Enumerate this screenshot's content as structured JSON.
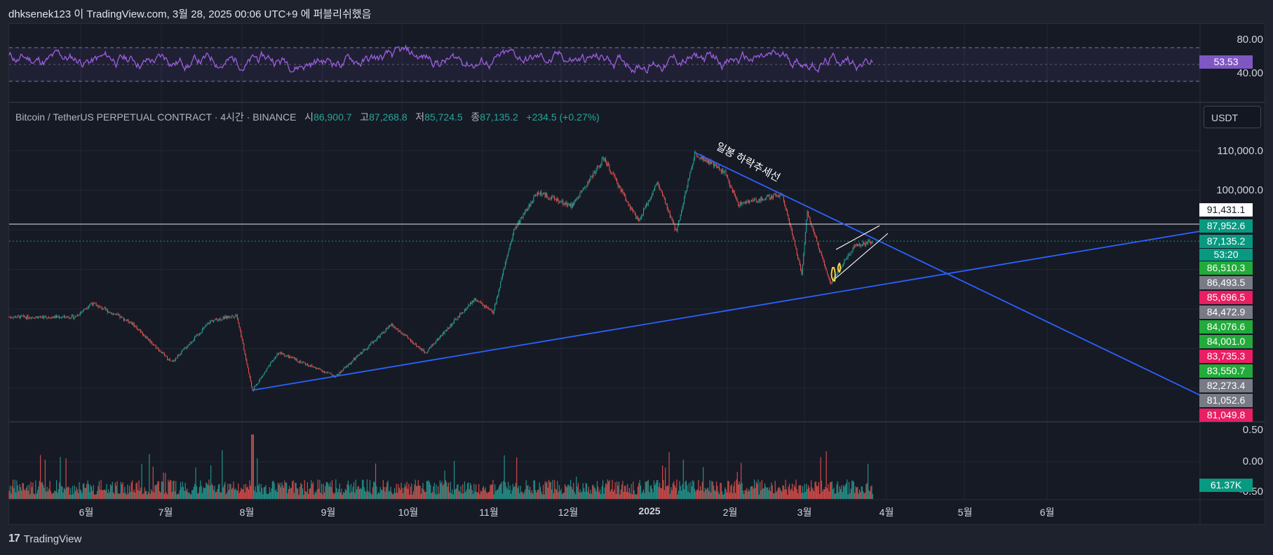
{
  "header": {
    "publish_line": "dhksenek123 이 TradingView.com, 3월 28, 2025 00:06 UTC+9 에 퍼블리쉬했음"
  },
  "rsi": {
    "ticks": [
      "80.00",
      "40.00"
    ],
    "value_badge": "53.53",
    "colors": {
      "line": "#9c5ee0",
      "band": "#7e57c2",
      "badge": "#7e57c2"
    }
  },
  "legend": {
    "symbol": "Bitcoin / TetherUS PERPETUAL CONTRACT · 4시간 · BINANCE",
    "open_label": "시",
    "open": "86,900.7",
    "high_label": "고",
    "high": "87,268.8",
    "low_label": "저",
    "low": "85,724.5",
    "close_label": "종",
    "close": "87,135.2",
    "change": "+234.5 (+0.27%)"
  },
  "currency_button": "USDT",
  "price_axis": {
    "ticks": [
      "110,000.0",
      "100,000.0"
    ],
    "badges": [
      {
        "text": "91,431.1",
        "bg": "#ffffff",
        "fg": "#131722"
      },
      {
        "text": "87,952.6",
        "bg": "#089981",
        "fg": "#ffffff"
      },
      {
        "text": "87,135.2",
        "bg": "#089981",
        "fg": "#ffffff"
      },
      {
        "text": "53:20",
        "bg": "#089981",
        "fg": "#ffffff"
      },
      {
        "text": "86,510.3",
        "bg": "#22ab3a",
        "fg": "#ffffff"
      },
      {
        "text": "86,493.5",
        "bg": "#787b86",
        "fg": "#ffffff"
      },
      {
        "text": "85,696.5",
        "bg": "#e91e63",
        "fg": "#ffffff"
      },
      {
        "text": "84,472.9",
        "bg": "#787b86",
        "fg": "#ffffff"
      },
      {
        "text": "84,076.6",
        "bg": "#22ab3a",
        "fg": "#ffffff"
      },
      {
        "text": "84,001.0",
        "bg": "#22ab3a",
        "fg": "#ffffff"
      },
      {
        "text": "83,735.3",
        "bg": "#e91e63",
        "fg": "#ffffff"
      },
      {
        "text": "83,550.7",
        "bg": "#22ab3a",
        "fg": "#ffffff"
      },
      {
        "text": "82,273.4",
        "bg": "#787b86",
        "fg": "#ffffff"
      },
      {
        "text": "81,052.6",
        "bg": "#787b86",
        "fg": "#ffffff"
      },
      {
        "text": "81,049.8",
        "bg": "#e91e63",
        "fg": "#ffffff"
      }
    ]
  },
  "annotation": "일봉 하락추세선",
  "volume": {
    "ticks": [
      "0.50",
      "0.00",
      "-0.50"
    ],
    "value_badge": "61.37K"
  },
  "time_axis": {
    "labels": [
      "6월",
      "7월",
      "8월",
      "9월",
      "10월",
      "11월",
      "12월",
      "2025",
      "2월",
      "3월",
      "4월",
      "5월",
      "6월"
    ]
  },
  "footer": {
    "brand": "TradingView",
    "logo": "17"
  },
  "chart_data": {
    "type": "candlestick",
    "symbol": "BTCUSDT.P",
    "interval": "4시간",
    "x": [
      "2024-05",
      "2024-06",
      "2024-07",
      "2024-08",
      "2024-09",
      "2024-10",
      "2024-11",
      "2024-12",
      "2025-01",
      "2025-02",
      "2025-03",
      "2025-04",
      "2025-05",
      "2025-06"
    ],
    "approx_price_path": [
      [
        "2024-05-20",
        68000
      ],
      [
        "2024-06-05",
        71500
      ],
      [
        "2024-06-20",
        66500
      ],
      [
        "2024-07-05",
        56500
      ],
      [
        "2024-07-20",
        67000
      ],
      [
        "2024-07-30",
        68500
      ],
      [
        "2024-08-05",
        49500
      ],
      [
        "2024-08-15",
        59000
      ],
      [
        "2024-09-06",
        53000
      ],
      [
        "2024-09-27",
        66000
      ],
      [
        "2024-10-10",
        59000
      ],
      [
        "2024-10-29",
        72500
      ],
      [
        "2024-11-05",
        69000
      ],
      [
        "2024-11-13",
        90000
      ],
      [
        "2024-11-22",
        99500
      ],
      [
        "2024-12-05",
        96000
      ],
      [
        "2024-12-17",
        108000
      ],
      [
        "2024-12-30",
        92000
      ],
      [
        "2025-01-06",
        102000
      ],
      [
        "2025-01-13",
        89500
      ],
      [
        "2025-01-20",
        109500
      ],
      [
        "2025-01-31",
        104500
      ],
      [
        "2025-02-05",
        96500
      ],
      [
        "2025-02-21",
        99000
      ],
      [
        "2025-02-28",
        79000
      ],
      [
        "2025-03-02",
        94500
      ],
      [
        "2025-03-11",
        76500
      ],
      [
        "2025-03-20",
        86000
      ],
      [
        "2025-03-27",
        87135.2
      ]
    ],
    "horizontal_line": 91431.1,
    "trendlines": [
      {
        "name": "일봉 하락추세선",
        "from": [
          "2025-01-20",
          109500
        ],
        "to": [
          "2025-06-20",
          78500
        ]
      },
      {
        "from": [
          "2024-08-05",
          49500
        ],
        "to": [
          "2025-06-30",
          89000
        ]
      }
    ],
    "rsi_levels": [
      70,
      30
    ],
    "rsi_last": 53.53,
    "volume_last": "61.37K"
  }
}
